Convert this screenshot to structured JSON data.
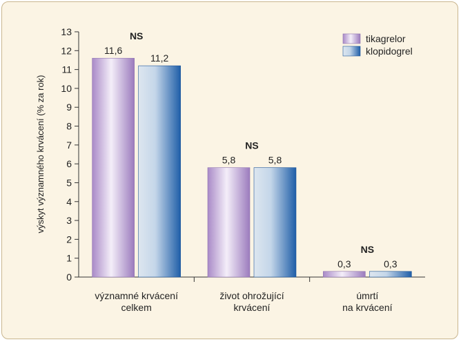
{
  "chart_data": {
    "type": "bar",
    "categories": [
      [
        "významné krvácení",
        "celkem"
      ],
      [
        "život ohrožující",
        "krvácení"
      ],
      [
        "úmrtí",
        "na krvácení"
      ]
    ],
    "series": [
      {
        "name": "tikagrelor",
        "values": [
          11.6,
          5.8,
          0.3
        ],
        "labels": [
          "11,6",
          "5,8",
          "0,3"
        ],
        "color": "#b69bd0"
      },
      {
        "name": "klopidogrel",
        "values": [
          11.2,
          5.8,
          0.3
        ],
        "labels": [
          "11,2",
          "5,8",
          "0,3"
        ],
        "color": "#2f6fb2"
      }
    ],
    "annotations": [
      "NS",
      "NS",
      "NS"
    ],
    "ylabel": "výskyt významného krvácení (% za rok)",
    "xlabel": "",
    "title": "",
    "ylim": [
      0,
      13
    ],
    "yticks": [
      0,
      1,
      2,
      3,
      4,
      5,
      6,
      7,
      8,
      9,
      10,
      11,
      12,
      13
    ],
    "grid": false,
    "legend_position": "top-right"
  }
}
